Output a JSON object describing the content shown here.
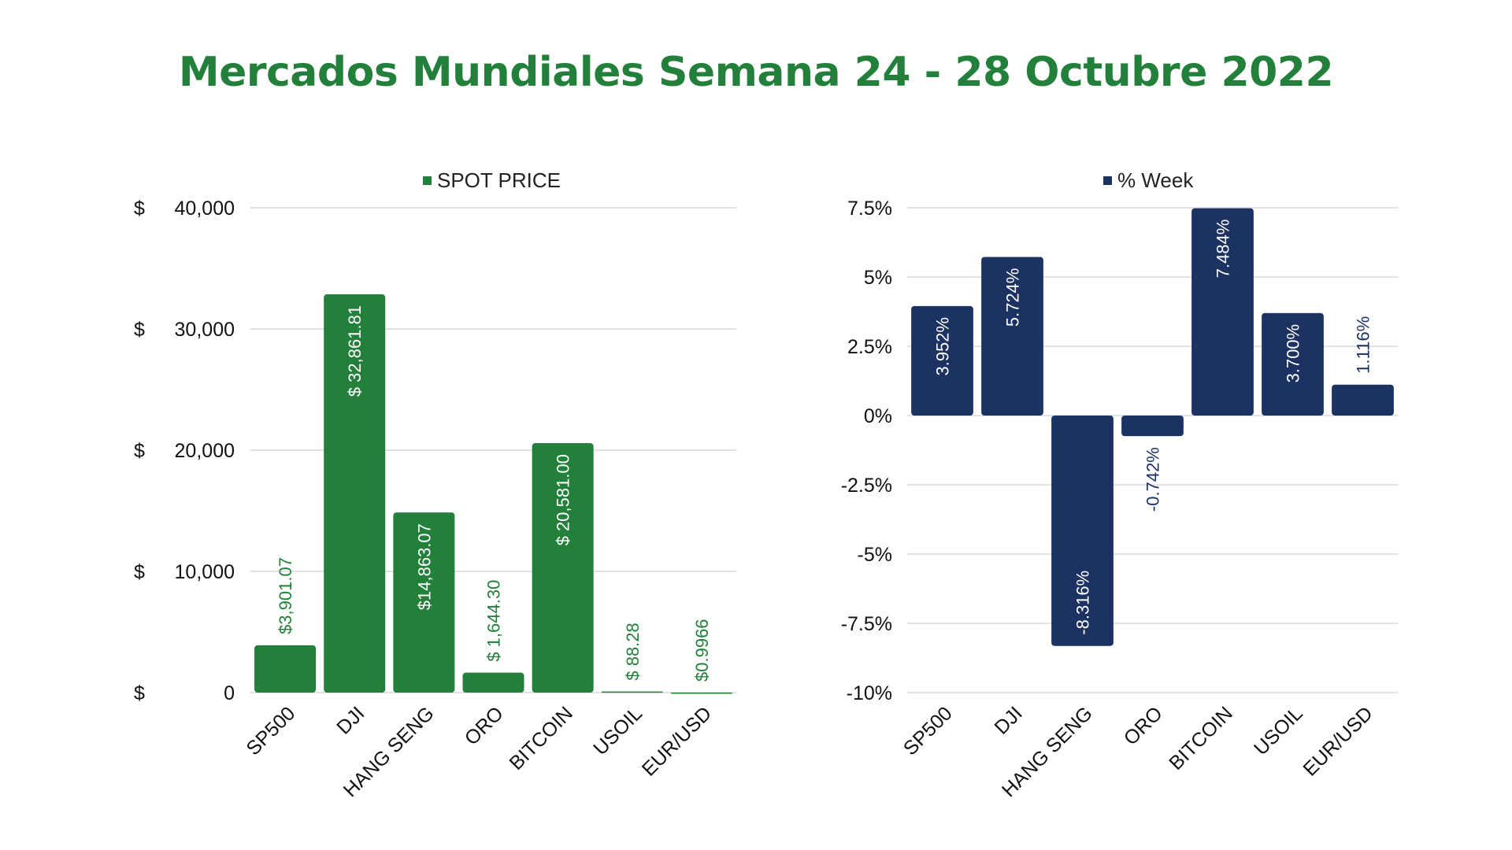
{
  "title": "Mercados Mundiales Semana 24 - 28 Octubre 2022",
  "colors": {
    "spot": "#22803a",
    "week": "#1c3262",
    "grid": "#d9d9d9",
    "title": "#22803a"
  },
  "chart_data": [
    {
      "type": "bar",
      "legend": "SPOT PRICE",
      "legend_position": "top",
      "categories": [
        "SP500",
        "DJI",
        "HANG SENG",
        "ORO",
        "BITCOIN",
        "USOIL",
        "EUR/USD"
      ],
      "values": [
        3901.07,
        32861.81,
        14863.07,
        1644.3,
        20581.0,
        88.28,
        0.9966
      ],
      "data_labels": [
        "$3,901.07",
        "$ 32,861.81",
        "$14,863.07",
        "$ 1,644.30",
        "$ 20,581.00",
        "$ 88.28",
        "$0.9966"
      ],
      "ylim": [
        0,
        40000
      ],
      "yticks": [
        0,
        10000,
        20000,
        30000,
        40000
      ],
      "ytick_prefix": "$",
      "ytick_labels": [
        "0",
        "10,000",
        "20,000",
        "30,000",
        "40,000"
      ],
      "grid": true
    },
    {
      "type": "bar",
      "legend": "% Week",
      "legend_position": "top",
      "categories": [
        "SP500",
        "DJI",
        "HANG SENG",
        "ORO",
        "BITCOIN",
        "USOIL",
        "EUR/USD"
      ],
      "values": [
        3.952,
        5.724,
        -8.316,
        -0.742,
        7.484,
        3.7,
        1.116
      ],
      "data_labels": [
        "3.952%",
        "5.724%",
        "-8.316%",
        "-0.742%",
        "7.484%",
        "3.700%",
        "1.116%"
      ],
      "ylim": [
        -10,
        7.5
      ],
      "yticks": [
        -10,
        -7.5,
        -5,
        -2.5,
        0,
        2.5,
        5,
        7.5
      ],
      "ytick_labels": [
        "-10%",
        "-7.5%",
        "-5%",
        "-2.5%",
        "0%",
        "2.5%",
        "5%",
        "7.5%"
      ],
      "grid": true
    }
  ]
}
